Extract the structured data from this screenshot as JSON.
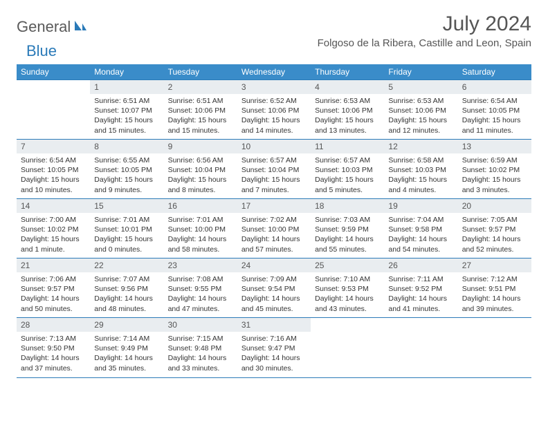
{
  "logo": {
    "word1": "General",
    "word2": "Blue"
  },
  "title": "July 2024",
  "location": "Folgoso de la Ribera, Castille and Leon, Spain",
  "colors": {
    "header_bg": "#3a8cc9",
    "rule": "#2a7ab8",
    "daynum_bg": "#e9edf0",
    "text": "#333333",
    "title_text": "#555555"
  },
  "weekdays": [
    "Sunday",
    "Monday",
    "Tuesday",
    "Wednesday",
    "Thursday",
    "Friday",
    "Saturday"
  ],
  "start_offset": 1,
  "days": [
    {
      "n": "1",
      "sunrise": "6:51 AM",
      "sunset": "10:07 PM",
      "daylight": "15 hours and 15 minutes."
    },
    {
      "n": "2",
      "sunrise": "6:51 AM",
      "sunset": "10:06 PM",
      "daylight": "15 hours and 15 minutes."
    },
    {
      "n": "3",
      "sunrise": "6:52 AM",
      "sunset": "10:06 PM",
      "daylight": "15 hours and 14 minutes."
    },
    {
      "n": "4",
      "sunrise": "6:53 AM",
      "sunset": "10:06 PM",
      "daylight": "15 hours and 13 minutes."
    },
    {
      "n": "5",
      "sunrise": "6:53 AM",
      "sunset": "10:06 PM",
      "daylight": "15 hours and 12 minutes."
    },
    {
      "n": "6",
      "sunrise": "6:54 AM",
      "sunset": "10:05 PM",
      "daylight": "15 hours and 11 minutes."
    },
    {
      "n": "7",
      "sunrise": "6:54 AM",
      "sunset": "10:05 PM",
      "daylight": "15 hours and 10 minutes."
    },
    {
      "n": "8",
      "sunrise": "6:55 AM",
      "sunset": "10:05 PM",
      "daylight": "15 hours and 9 minutes."
    },
    {
      "n": "9",
      "sunrise": "6:56 AM",
      "sunset": "10:04 PM",
      "daylight": "15 hours and 8 minutes."
    },
    {
      "n": "10",
      "sunrise": "6:57 AM",
      "sunset": "10:04 PM",
      "daylight": "15 hours and 7 minutes."
    },
    {
      "n": "11",
      "sunrise": "6:57 AM",
      "sunset": "10:03 PM",
      "daylight": "15 hours and 5 minutes."
    },
    {
      "n": "12",
      "sunrise": "6:58 AM",
      "sunset": "10:03 PM",
      "daylight": "15 hours and 4 minutes."
    },
    {
      "n": "13",
      "sunrise": "6:59 AM",
      "sunset": "10:02 PM",
      "daylight": "15 hours and 3 minutes."
    },
    {
      "n": "14",
      "sunrise": "7:00 AM",
      "sunset": "10:02 PM",
      "daylight": "15 hours and 1 minute."
    },
    {
      "n": "15",
      "sunrise": "7:01 AM",
      "sunset": "10:01 PM",
      "daylight": "15 hours and 0 minutes."
    },
    {
      "n": "16",
      "sunrise": "7:01 AM",
      "sunset": "10:00 PM",
      "daylight": "14 hours and 58 minutes."
    },
    {
      "n": "17",
      "sunrise": "7:02 AM",
      "sunset": "10:00 PM",
      "daylight": "14 hours and 57 minutes."
    },
    {
      "n": "18",
      "sunrise": "7:03 AM",
      "sunset": "9:59 PM",
      "daylight": "14 hours and 55 minutes."
    },
    {
      "n": "19",
      "sunrise": "7:04 AM",
      "sunset": "9:58 PM",
      "daylight": "14 hours and 54 minutes."
    },
    {
      "n": "20",
      "sunrise": "7:05 AM",
      "sunset": "9:57 PM",
      "daylight": "14 hours and 52 minutes."
    },
    {
      "n": "21",
      "sunrise": "7:06 AM",
      "sunset": "9:57 PM",
      "daylight": "14 hours and 50 minutes."
    },
    {
      "n": "22",
      "sunrise": "7:07 AM",
      "sunset": "9:56 PM",
      "daylight": "14 hours and 48 minutes."
    },
    {
      "n": "23",
      "sunrise": "7:08 AM",
      "sunset": "9:55 PM",
      "daylight": "14 hours and 47 minutes."
    },
    {
      "n": "24",
      "sunrise": "7:09 AM",
      "sunset": "9:54 PM",
      "daylight": "14 hours and 45 minutes."
    },
    {
      "n": "25",
      "sunrise": "7:10 AM",
      "sunset": "9:53 PM",
      "daylight": "14 hours and 43 minutes."
    },
    {
      "n": "26",
      "sunrise": "7:11 AM",
      "sunset": "9:52 PM",
      "daylight": "14 hours and 41 minutes."
    },
    {
      "n": "27",
      "sunrise": "7:12 AM",
      "sunset": "9:51 PM",
      "daylight": "14 hours and 39 minutes."
    },
    {
      "n": "28",
      "sunrise": "7:13 AM",
      "sunset": "9:50 PM",
      "daylight": "14 hours and 37 minutes."
    },
    {
      "n": "29",
      "sunrise": "7:14 AM",
      "sunset": "9:49 PM",
      "daylight": "14 hours and 35 minutes."
    },
    {
      "n": "30",
      "sunrise": "7:15 AM",
      "sunset": "9:48 PM",
      "daylight": "14 hours and 33 minutes."
    },
    {
      "n": "31",
      "sunrise": "7:16 AM",
      "sunset": "9:47 PM",
      "daylight": "14 hours and 30 minutes."
    }
  ],
  "labels": {
    "sunrise": "Sunrise:",
    "sunset": "Sunset:",
    "daylight": "Daylight:"
  }
}
